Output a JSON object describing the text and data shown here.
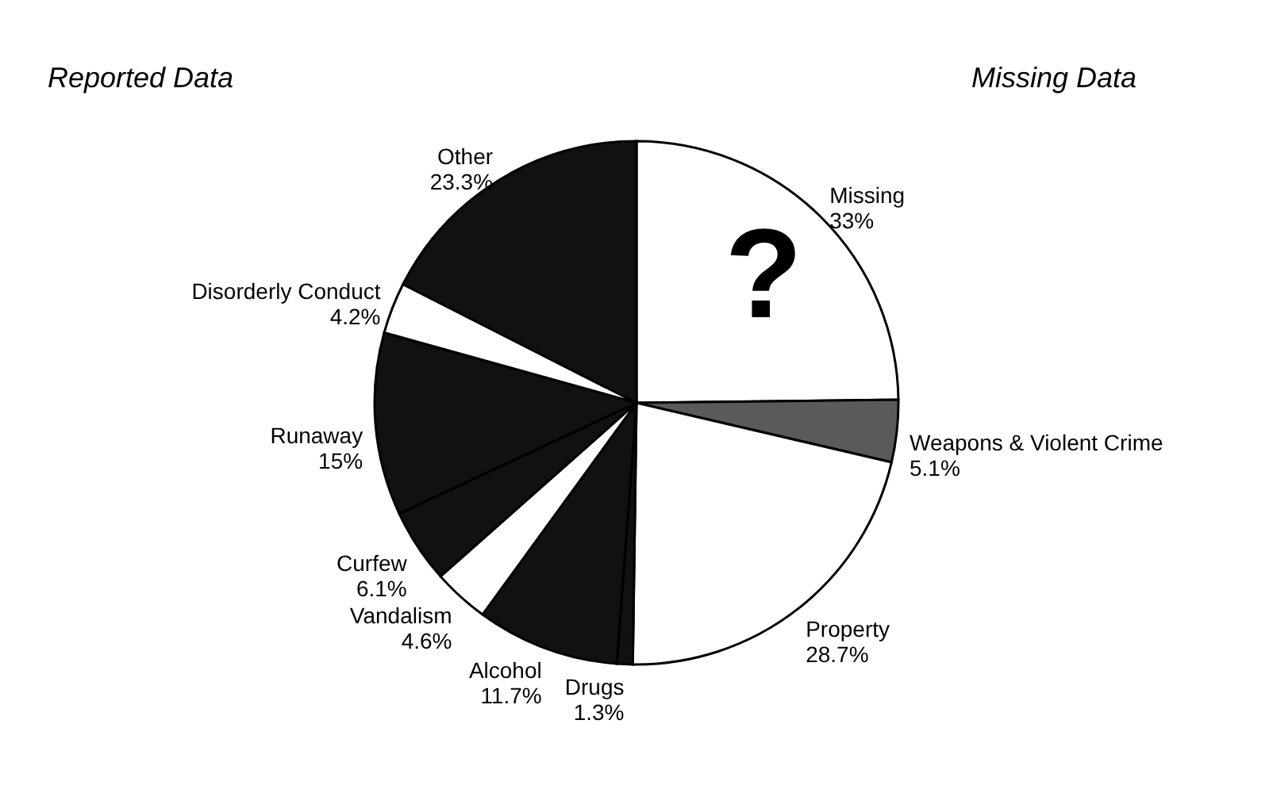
{
  "chart_data": {
    "type": "pie",
    "categories": [
      "Missing",
      "Weapons & Violent Crime",
      "Property",
      "Drugs",
      "Alcohol",
      "Vandalism",
      "Curfew",
      "Runaway",
      "Disorderly Conduct",
      "Other"
    ],
    "values": [
      33,
      5.1,
      28.7,
      1.3,
      11.7,
      4.6,
      6.1,
      15,
      4.2,
      23.3
    ],
    "value_labels": [
      "33%",
      "5.1%",
      "28.7%",
      "1.3%",
      "11.7%",
      "4.6%",
      "6.1%",
      "15%",
      "4.2%",
      "23.3%"
    ],
    "colors": [
      "#ffffff",
      "#5a5a5a",
      "#ffffff",
      "#111111",
      "#111111",
      "#ffffff",
      "#111111",
      "#111111",
      "#ffffff",
      "#111111"
    ],
    "annotations": [
      "Reported Data",
      "Missing Data",
      "?"
    ],
    "legend": false
  }
}
